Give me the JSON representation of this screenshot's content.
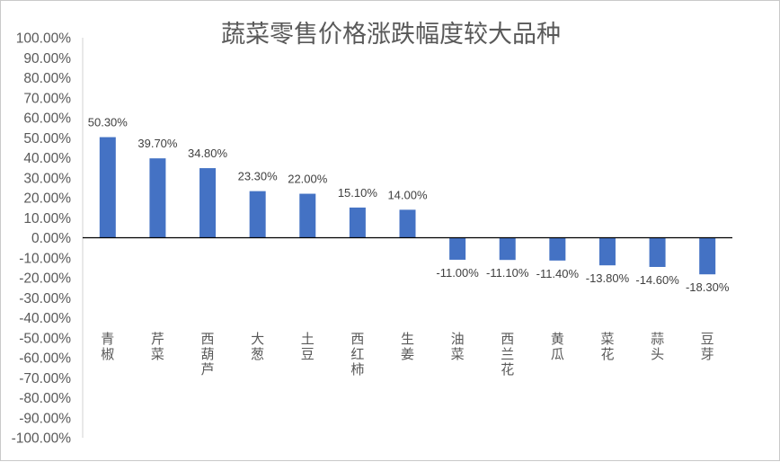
{
  "chart_data": {
    "type": "bar",
    "title": "蔬菜零售价格涨跌幅度较大品种",
    "xlabel": "",
    "ylabel": "",
    "ylim": [
      -100,
      100
    ],
    "y_tick_labels": [
      "100.00%",
      "90.00%",
      "80.00%",
      "70.00%",
      "60.00%",
      "50.00%",
      "40.00%",
      "30.00%",
      "20.00%",
      "10.00%",
      "0.00%",
      "-10.00%",
      "-20.00%",
      "-30.00%",
      "-40.00%",
      "-50.00%",
      "-60.00%",
      "-70.00%",
      "-80.00%",
      "-90.00%",
      "-100.00%"
    ],
    "categories": [
      "青椒",
      "芹菜",
      "西葫芦",
      "大葱",
      "土豆",
      "西红柿",
      "生姜",
      "油菜",
      "西兰花",
      "黄瓜",
      "菜花",
      "蒜头",
      "豆芽"
    ],
    "values": [
      50.3,
      39.7,
      34.8,
      23.3,
      22.0,
      15.1,
      14.0,
      -11.0,
      -11.1,
      -11.4,
      -13.8,
      -14.6,
      -18.3
    ],
    "data_labels": [
      "50.30%",
      "39.70%",
      "34.80%",
      "23.30%",
      "22.00%",
      "15.10%",
      "14.00%",
      "-11.00%",
      "-11.10%",
      "-11.40%",
      "-13.80%",
      "-14.60%",
      "-18.30%"
    ],
    "bar_color": "#4472C4",
    "grid": false,
    "legend": "none"
  }
}
